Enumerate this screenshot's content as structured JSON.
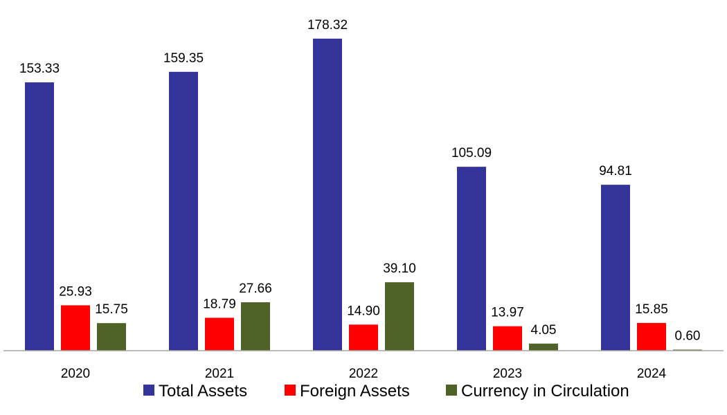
{
  "chart_data": {
    "type": "bar",
    "categories": [
      "2020",
      "2021",
      "2022",
      "2023",
      "2024"
    ],
    "series": [
      {
        "name": "Total Assets",
        "color": "#333399",
        "values": [
          153.33,
          159.35,
          178.32,
          105.09,
          94.81
        ],
        "labels": [
          "153.33",
          "159.35",
          "178.32",
          "105.09",
          "94.81"
        ]
      },
      {
        "name": "Foreign Assets",
        "color": "#ff0000",
        "values": [
          25.93,
          18.79,
          14.9,
          13.97,
          15.85
        ],
        "labels": [
          "25.93",
          "18.79",
          "14.90",
          "13.97",
          "15.85"
        ]
      },
      {
        "name": "Currency in Circulation",
        "color": "#4f6228",
        "values": [
          15.75,
          27.66,
          39.1,
          4.05,
          0.6
        ],
        "labels": [
          "15.75",
          "27.66",
          "39.10",
          "4.05",
          "0.60"
        ]
      }
    ],
    "ylim": [
      0,
      180
    ],
    "grid": false,
    "legend_position": "bottom"
  }
}
